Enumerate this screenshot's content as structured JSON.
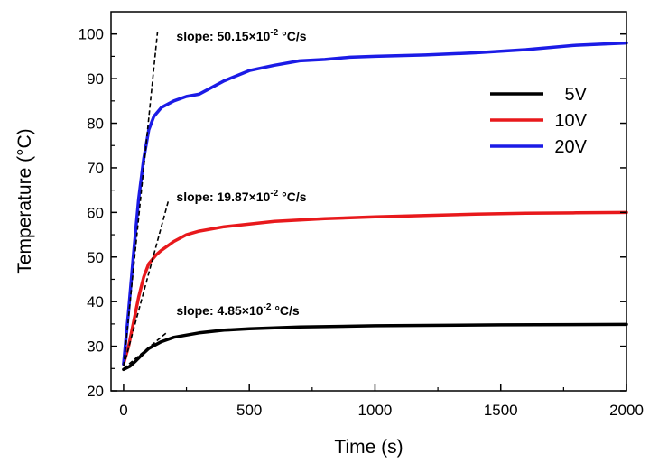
{
  "chart_data": {
    "type": "line",
    "title": "",
    "xlabel": "Time (s)",
    "ylabel": "Temperature (°C)",
    "xlim": [
      -50,
      2000
    ],
    "ylim": [
      20,
      105
    ],
    "xticks": [
      0,
      500,
      1000,
      1500,
      2000
    ],
    "yticks": [
      20,
      30,
      40,
      50,
      60,
      70,
      80,
      90,
      100
    ],
    "grid": false,
    "legend_position": "top-right",
    "series": [
      {
        "name": "5V",
        "color": "#000000",
        "x": [
          0,
          25,
          50,
          75,
          100,
          150,
          200,
          300,
          400,
          500,
          700,
          1000,
          1500,
          2000
        ],
        "y": [
          24.8,
          25.5,
          26.8,
          28.2,
          29.5,
          31.0,
          32.0,
          33.0,
          33.6,
          33.9,
          34.3,
          34.6,
          34.8,
          34.9
        ]
      },
      {
        "name": "10V",
        "color": "#e8191c",
        "x": [
          0,
          20,
          40,
          60,
          80,
          100,
          130,
          150,
          175,
          200,
          250,
          300,
          400,
          500,
          600,
          800,
          1000,
          1200,
          1400,
          1600,
          1800,
          2000
        ],
        "y": [
          26.0,
          30.0,
          35.5,
          41.0,
          45.5,
          48.5,
          50.5,
          51.5,
          52.5,
          53.5,
          55.0,
          55.8,
          56.8,
          57.4,
          58.0,
          58.6,
          59.0,
          59.3,
          59.6,
          59.8,
          59.9,
          60.0
        ]
      },
      {
        "name": "20V",
        "color": "#1b1be6",
        "x": [
          0,
          20,
          40,
          60,
          80,
          100,
          120,
          150,
          200,
          250,
          300,
          400,
          500,
          600,
          700,
          800,
          900,
          1000,
          1200,
          1400,
          1600,
          1800,
          2000
        ],
        "y": [
          26.0,
          38.0,
          51.0,
          63.0,
          72.0,
          78.5,
          81.5,
          83.5,
          85.0,
          86.0,
          86.5,
          89.5,
          91.8,
          93.0,
          94.0,
          94.3,
          94.8,
          95.0,
          95.3,
          95.8,
          96.5,
          97.5,
          98.0
        ]
      }
    ],
    "slope_lines": [
      {
        "x": [
          0,
          135
        ],
        "y": [
          25.5,
          100.5
        ]
      },
      {
        "x": [
          0,
          180
        ],
        "y": [
          25.5,
          63.0
        ]
      },
      {
        "x": [
          0,
          170
        ],
        "y": [
          25.0,
          33.0
        ]
      }
    ],
    "annotations": [
      {
        "text": "slope: 50.15×10",
        "sup": "-2",
        "unit": " °C/s",
        "x": 210,
        "y": 98.5
      },
      {
        "text": "slope: 19.87×10",
        "sup": "-2",
        "unit": " °C/s",
        "x": 210,
        "y": 62.5
      },
      {
        "text": "slope: 4.85×10",
        "sup": "-2",
        "unit": " °C/s",
        "x": 210,
        "y": 37.0
      }
    ]
  }
}
